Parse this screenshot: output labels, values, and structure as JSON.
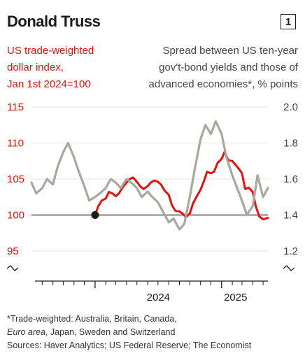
{
  "header": {
    "title": "Donald Truss",
    "chart_number": "1"
  },
  "chart_data": {
    "type": "line",
    "left_axis_label": [
      "US trade-weighted",
      "dollar index,",
      "Jan 1st 2024=100"
    ],
    "right_axis_label": [
      "Spread between US ten-year",
      "gov't-bond yields and those of",
      "advanced economies*, % points"
    ],
    "left_ticks": [
      "115",
      "110",
      "105",
      "100",
      "95"
    ],
    "right_ticks": [
      "2.0",
      "1.8",
      "1.6",
      "1.4",
      "1.2"
    ],
    "x_ticks": [
      "2024",
      "2025"
    ],
    "left_ylim": [
      95,
      115
    ],
    "right_ylim": [
      1.2,
      2.0
    ],
    "x_range": [
      "2023-07-01",
      "2025-05-15"
    ],
    "highlight_point": {
      "date": "2024-01-01",
      "value": 100
    },
    "series": [
      {
        "axis": "left",
        "color": "#e3120b",
        "points": [
          [
            "2024-01-01",
            100
          ],
          [
            "2024-01-10",
            101.2
          ],
          [
            "2024-01-20",
            102.0
          ],
          [
            "2024-02-01",
            102.3
          ],
          [
            "2024-02-10",
            103.2
          ],
          [
            "2024-02-20",
            103.0
          ],
          [
            "2024-03-01",
            102.6
          ],
          [
            "2024-03-10",
            103.0
          ],
          [
            "2024-03-20",
            103.8
          ],
          [
            "2024-04-01",
            104.5
          ],
          [
            "2024-04-10",
            105.0
          ],
          [
            "2024-04-20",
            105.2
          ],
          [
            "2024-05-01",
            104.6
          ],
          [
            "2024-05-10",
            104.0
          ],
          [
            "2024-05-20",
            103.6
          ],
          [
            "2024-06-01",
            104.0
          ],
          [
            "2024-06-10",
            104.5
          ],
          [
            "2024-06-20",
            104.8
          ],
          [
            "2024-07-01",
            104.6
          ],
          [
            "2024-07-10",
            104.2
          ],
          [
            "2024-07-20",
            103.4
          ],
          [
            "2024-08-01",
            102.8
          ],
          [
            "2024-08-10",
            101.4
          ],
          [
            "2024-08-20",
            100.6
          ],
          [
            "2024-09-01",
            100.5
          ],
          [
            "2024-09-10",
            100.2
          ],
          [
            "2024-09-20",
            99.7
          ],
          [
            "2024-10-01",
            100.2
          ],
          [
            "2024-10-10",
            101.6
          ],
          [
            "2024-10-20",
            102.5
          ],
          [
            "2024-11-01",
            103.5
          ],
          [
            "2024-11-10",
            104.6
          ],
          [
            "2024-11-20",
            106.0
          ],
          [
            "2024-12-01",
            105.8
          ],
          [
            "2024-12-10",
            106.0
          ],
          [
            "2024-12-20",
            107.2
          ],
          [
            "2025-01-01",
            107.8
          ],
          [
            "2025-01-10",
            108.8
          ],
          [
            "2025-01-20",
            107.6
          ],
          [
            "2025-02-01",
            107.5
          ],
          [
            "2025-02-10",
            107.0
          ],
          [
            "2025-02-20",
            106.4
          ],
          [
            "2025-03-01",
            105.8
          ],
          [
            "2025-03-10",
            103.6
          ],
          [
            "2025-03-20",
            103.8
          ],
          [
            "2025-04-01",
            103.2
          ],
          [
            "2025-04-10",
            101.2
          ],
          [
            "2025-04-20",
            99.8
          ],
          [
            "2025-05-01",
            99.4
          ],
          [
            "2025-05-15",
            99.6
          ]
        ]
      },
      {
        "axis": "right",
        "color": "#a8a8a0",
        "points": [
          [
            "2023-07-01",
            1.58
          ],
          [
            "2023-07-15",
            1.52
          ],
          [
            "2023-08-01",
            1.55
          ],
          [
            "2023-08-15",
            1.6
          ],
          [
            "2023-09-01",
            1.57
          ],
          [
            "2023-09-15",
            1.67
          ],
          [
            "2023-10-01",
            1.75
          ],
          [
            "2023-10-15",
            1.8
          ],
          [
            "2023-11-01",
            1.72
          ],
          [
            "2023-11-15",
            1.64
          ],
          [
            "2023-12-01",
            1.56
          ],
          [
            "2023-12-15",
            1.48
          ],
          [
            "2024-01-01",
            1.5
          ],
          [
            "2024-01-15",
            1.52
          ],
          [
            "2024-02-01",
            1.55
          ],
          [
            "2024-02-15",
            1.6
          ],
          [
            "2024-03-01",
            1.58
          ],
          [
            "2024-03-15",
            1.55
          ],
          [
            "2024-04-01",
            1.6
          ],
          [
            "2024-04-15",
            1.58
          ],
          [
            "2024-05-01",
            1.55
          ],
          [
            "2024-05-15",
            1.5
          ],
          [
            "2024-06-01",
            1.53
          ],
          [
            "2024-06-15",
            1.5
          ],
          [
            "2024-07-01",
            1.47
          ],
          [
            "2024-07-15",
            1.42
          ],
          [
            "2024-08-01",
            1.36
          ],
          [
            "2024-08-15",
            1.38
          ],
          [
            "2024-09-01",
            1.32
          ],
          [
            "2024-09-15",
            1.35
          ],
          [
            "2024-10-01",
            1.5
          ],
          [
            "2024-10-15",
            1.65
          ],
          [
            "2024-11-01",
            1.82
          ],
          [
            "2024-11-15",
            1.9
          ],
          [
            "2024-12-01",
            1.85
          ],
          [
            "2024-12-15",
            1.92
          ],
          [
            "2025-01-01",
            1.85
          ],
          [
            "2025-01-15",
            1.72
          ],
          [
            "2025-02-01",
            1.62
          ],
          [
            "2025-02-15",
            1.55
          ],
          [
            "2025-03-01",
            1.48
          ],
          [
            "2025-03-15",
            1.4
          ],
          [
            "2025-04-01",
            1.45
          ],
          [
            "2025-04-15",
            1.62
          ],
          [
            "2025-05-01",
            1.5
          ],
          [
            "2025-05-15",
            1.55
          ]
        ]
      }
    ]
  },
  "footnotes": {
    "line1": "*Trade-weighted: Australia, Britain, Canada,",
    "line2_italic": "Euro area",
    "line2_rest": ", Japan, Sweden and Switzerland",
    "sources": "Sources: Haver Analytics; US Federal Reserve; The Economist"
  }
}
